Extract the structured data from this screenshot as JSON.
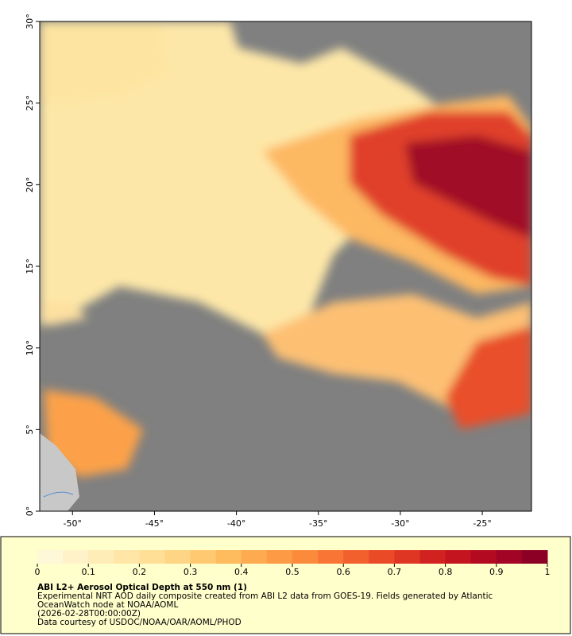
{
  "map": {
    "xlim": [
      -52,
      -22
    ],
    "ylim": [
      0,
      30
    ],
    "xticks": [
      {
        "value": -50,
        "label": "-50°"
      },
      {
        "value": -45,
        "label": "-45°"
      },
      {
        "value": -40,
        "label": "-40°"
      },
      {
        "value": -35,
        "label": "-35°"
      },
      {
        "value": -30,
        "label": "-30°"
      },
      {
        "value": -25,
        "label": "-25°"
      }
    ],
    "yticks": [
      {
        "value": 0,
        "label": "0°"
      },
      {
        "value": 5,
        "label": "5°"
      },
      {
        "value": 10,
        "label": "10°"
      },
      {
        "value": 15,
        "label": "15°"
      },
      {
        "value": 20,
        "label": "20°"
      },
      {
        "value": 25,
        "label": "25°"
      },
      {
        "value": 30,
        "label": "30°"
      }
    ]
  },
  "colorbar": {
    "lim": [
      0,
      1
    ],
    "ticks": [
      0,
      0.1,
      0.2,
      0.3,
      0.4,
      0.5,
      0.6,
      0.7,
      0.8,
      0.9,
      1
    ],
    "colors": [
      "#fff8d8",
      "#fff2c8",
      "#ffedb8",
      "#ffe6a6",
      "#ffdf95",
      "#fed584",
      "#fec970",
      "#febc5f",
      "#fdaa50",
      "#fd9a45",
      "#fc8a3d",
      "#f87535",
      "#f2602e",
      "#ea4a28",
      "#df3523",
      "#d2221f",
      "#c3141f",
      "#b30a22",
      "#a10425",
      "#8c0026"
    ]
  },
  "caption": {
    "title": "ABI L2+ Aerosol Optical Depth at 550 nm (1)",
    "lines": [
      "Experimental NRT AOD daily composite created from ABI L2 data from GOES-19. Fields generated by Atlantic",
      "OceanWatch node at NOAA/AOML",
      "(2026-02-28T00:00:00Z)",
      "Data courtesy of USDOC/NOAA/OAR/AOML/PHOD"
    ]
  }
}
